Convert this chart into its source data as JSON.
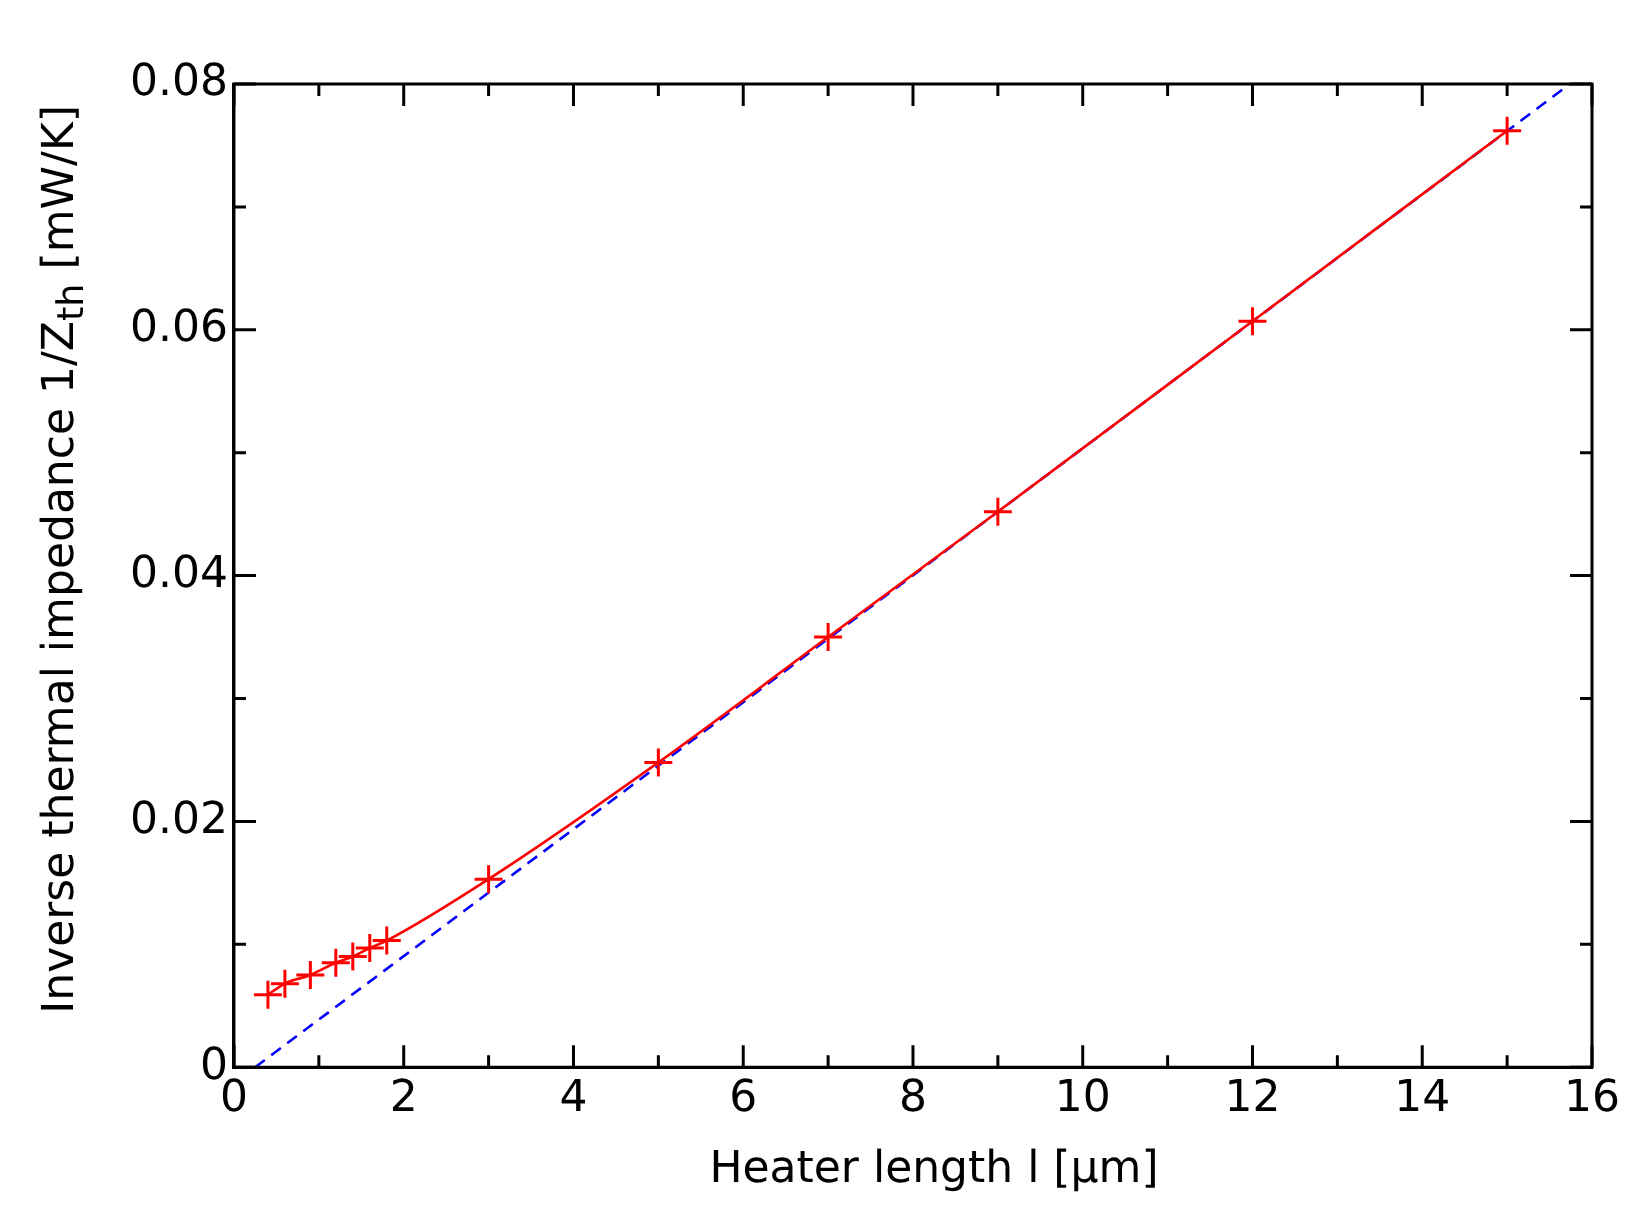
{
  "chart_data": {
    "type": "line",
    "xlabel": "Heater length l [μm]",
    "ylabel": "Inverse thermal impedance 1/Z$_{th}$ [mW/K]",
    "xlim": [
      0,
      16
    ],
    "xticks": [
      0,
      {
        "value": 1,
        "label": null
      },
      2,
      {
        "value": 3,
        "label": null
      },
      4,
      {
        "value": 5,
        "label": null
      },
      6,
      {
        "value": 7,
        "label": null
      },
      8,
      {
        "value": 9,
        "label": null
      },
      10,
      {
        "value": 11,
        "label": null
      },
      12,
      {
        "value": 13,
        "label": null
      },
      14,
      {
        "value": 15,
        "label": null
      },
      16
    ],
    "ylim": [
      0,
      0.08
    ],
    "yticks": [
      0,
      {
        "value": 0.01,
        "label": null
      },
      0.02,
      {
        "value": 0.03,
        "label": null
      },
      0.04,
      {
        "value": 0.05,
        "label": null
      },
      0.06,
      {
        "value": 0.07,
        "label": null
      },
      0.08
    ],
    "grid": false,
    "legend": false,
    "series": [
      {
        "color": "#ff0000",
        "marker": "cross",
        "line_style": "solid",
        "x": [
          0.4,
          0.6,
          0.9,
          1.2,
          1.4,
          1.6,
          1.8,
          3,
          5,
          7,
          9,
          12,
          15
        ],
        "values": [
          0.0059,
          0.0068,
          0.0075,
          0.0085,
          0.009,
          0.0097,
          0.0103,
          0.0153,
          0.0248,
          0.035,
          0.0452,
          0.0607,
          0.0762
        ]
      },
      {
        "color": "#0000ff",
        "marker": "none",
        "line_style": "dashed",
        "x": [
          0.25,
          15.74
        ],
        "values": [
          0,
          0.08
        ]
      }
    ]
  }
}
